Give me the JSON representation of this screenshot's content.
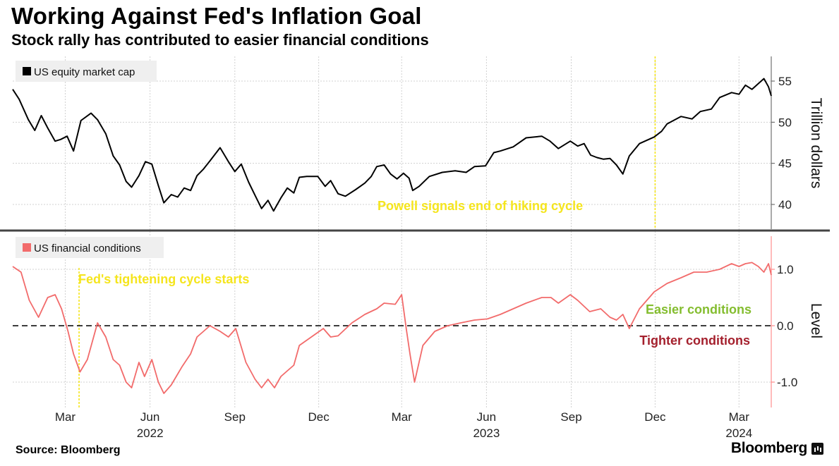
{
  "header": {
    "title": "Working Against Fed's Inflation Goal",
    "subtitle": "Stock rally has contributed to easier financial conditions"
  },
  "footer": {
    "source": "Source: Bloomberg",
    "brand": "Bloomberg"
  },
  "colors": {
    "equity_line": "#000000",
    "conditions_line": "#f26b6b",
    "annotation_yellow": "#f5e51e",
    "easier_green": "#84bd2f",
    "tighter_red": "#a4202d",
    "grid": "#d0d0d0"
  },
  "chart_data": [
    {
      "type": "line",
      "title": "US equity market cap",
      "legend": "US equity market cap",
      "ylabel": "Trillion dollars",
      "ylim": [
        37,
        58
      ],
      "yticks": [
        "40",
        "45",
        "50",
        "55"
      ],
      "x_start": "2022-01-03",
      "x_end": "2024-04-05",
      "x_months": [
        "Mar",
        "Jun",
        "Sep",
        "Dec",
        "Mar",
        "Jun",
        "Sep",
        "Dec",
        "Mar"
      ],
      "x_years": [
        "2022",
        "2023",
        "2024"
      ],
      "annotation": {
        "label": "Powell signals end of hiking cycle",
        "date": "2023-12-01"
      },
      "series": [
        {
          "name": "US equity market cap",
          "x": [
            "2022-01-03",
            "2022-01-10",
            "2022-01-20",
            "2022-01-27",
            "2022-02-03",
            "2022-02-10",
            "2022-02-18",
            "2022-02-24",
            "2022-03-03",
            "2022-03-10",
            "2022-03-18",
            "2022-03-29",
            "2022-04-05",
            "2022-04-14",
            "2022-04-22",
            "2022-04-29",
            "2022-05-06",
            "2022-05-12",
            "2022-05-20",
            "2022-05-27",
            "2022-06-03",
            "2022-06-10",
            "2022-06-16",
            "2022-06-24",
            "2022-07-01",
            "2022-07-08",
            "2022-07-15",
            "2022-07-22",
            "2022-07-29",
            "2022-08-05",
            "2022-08-16",
            "2022-08-25",
            "2022-09-01",
            "2022-09-08",
            "2022-09-16",
            "2022-09-23",
            "2022-09-30",
            "2022-10-07",
            "2022-10-13",
            "2022-10-21",
            "2022-10-28",
            "2022-11-04",
            "2022-11-10",
            "2022-11-18",
            "2022-11-30",
            "2022-12-08",
            "2022-12-14",
            "2022-12-22",
            "2022-12-30",
            "2023-01-10",
            "2023-01-20",
            "2023-01-27",
            "2023-02-02",
            "2023-02-10",
            "2023-02-17",
            "2023-02-24",
            "2023-03-03",
            "2023-03-09",
            "2023-03-13",
            "2023-03-20",
            "2023-03-31",
            "2023-04-14",
            "2023-04-28",
            "2023-05-10",
            "2023-05-19",
            "2023-05-31",
            "2023-06-09",
            "2023-06-16",
            "2023-06-30",
            "2023-07-14",
            "2023-07-31",
            "2023-08-09",
            "2023-08-18",
            "2023-08-31",
            "2023-09-08",
            "2023-09-15",
            "2023-09-22",
            "2023-09-29",
            "2023-10-06",
            "2023-10-13",
            "2023-10-20",
            "2023-10-27",
            "2023-11-03",
            "2023-11-14",
            "2023-11-30",
            "2023-12-08",
            "2023-12-14",
            "2023-12-29",
            "2024-01-10",
            "2024-01-19",
            "2024-01-31",
            "2024-02-09",
            "2024-02-22",
            "2024-03-01",
            "2024-03-08",
            "2024-03-15",
            "2024-03-28",
            "2024-04-02",
            "2024-04-05"
          ],
          "values": [
            54.0,
            52.8,
            50.3,
            49.0,
            50.8,
            49.3,
            47.7,
            47.9,
            48.3,
            46.5,
            50.2,
            51.1,
            50.3,
            48.6,
            45.9,
            44.8,
            42.8,
            42.1,
            43.5,
            45.2,
            44.9,
            42.3,
            40.2,
            41.2,
            40.9,
            42.0,
            41.7,
            43.5,
            44.3,
            45.3,
            46.9,
            45.2,
            44.0,
            44.9,
            42.7,
            41.1,
            39.5,
            40.5,
            39.2,
            40.8,
            42.0,
            41.4,
            43.3,
            43.4,
            43.4,
            42.2,
            42.9,
            41.3,
            41.0,
            41.8,
            42.6,
            43.4,
            44.6,
            44.8,
            43.7,
            43.1,
            43.8,
            43.2,
            41.7,
            42.2,
            43.4,
            43.9,
            44.1,
            43.9,
            44.6,
            44.7,
            46.3,
            46.5,
            47.0,
            48.1,
            48.3,
            47.7,
            46.8,
            47.7,
            47.1,
            47.4,
            46.0,
            45.7,
            45.5,
            45.6,
            44.8,
            43.7,
            45.9,
            47.4,
            48.2,
            48.9,
            49.8,
            50.7,
            50.4,
            51.3,
            51.6,
            53.0,
            53.6,
            53.4,
            54.5,
            54.0,
            55.3,
            54.3,
            53.2
          ]
        }
      ]
    },
    {
      "type": "line",
      "title": "US financial conditions",
      "legend": "US financial conditions",
      "ylabel": "Level",
      "ylim": [
        -1.45,
        1.65
      ],
      "yticks": [
        "-1.0",
        "0.0",
        "1.0"
      ],
      "reference_line": 0,
      "annotation": {
        "label": "Fed's tightening cycle starts",
        "date": "2022-03-16"
      },
      "labels": {
        "above_zero": "Easier conditions",
        "below_zero": "Tighter conditions"
      },
      "series": [
        {
          "name": "US financial conditions",
          "x": [
            "2022-01-03",
            "2022-01-12",
            "2022-01-21",
            "2022-01-31",
            "2022-02-10",
            "2022-02-18",
            "2022-02-25",
            "2022-03-04",
            "2022-03-10",
            "2022-03-17",
            "2022-03-25",
            "2022-04-05",
            "2022-04-14",
            "2022-04-22",
            "2022-04-29",
            "2022-05-06",
            "2022-05-12",
            "2022-05-20",
            "2022-05-26",
            "2022-06-03",
            "2022-06-10",
            "2022-06-16",
            "2022-06-24",
            "2022-07-06",
            "2022-07-15",
            "2022-07-22",
            "2022-07-29",
            "2022-08-05",
            "2022-08-16",
            "2022-08-25",
            "2022-09-02",
            "2022-09-13",
            "2022-09-23",
            "2022-09-30",
            "2022-10-07",
            "2022-10-14",
            "2022-10-21",
            "2022-10-28",
            "2022-11-04",
            "2022-11-10",
            "2022-11-23",
            "2022-12-06",
            "2022-12-14",
            "2022-12-22",
            "2023-01-06",
            "2023-01-20",
            "2023-02-02",
            "2023-02-10",
            "2023-02-22",
            "2023-03-01",
            "2023-03-06",
            "2023-03-10",
            "2023-03-15",
            "2023-03-24",
            "2023-04-06",
            "2023-04-20",
            "2023-05-04",
            "2023-05-19",
            "2023-06-02",
            "2023-06-16",
            "2023-06-30",
            "2023-07-14",
            "2023-07-31",
            "2023-08-10",
            "2023-08-18",
            "2023-08-31",
            "2023-09-08",
            "2023-09-21",
            "2023-10-03",
            "2023-10-13",
            "2023-10-20",
            "2023-10-27",
            "2023-11-03",
            "2023-11-14",
            "2023-11-30",
            "2023-12-14",
            "2023-12-29",
            "2024-01-12",
            "2024-01-26",
            "2024-02-09",
            "2024-02-22",
            "2024-03-01",
            "2024-03-08",
            "2024-03-15",
            "2024-03-22",
            "2024-03-28",
            "2024-04-02",
            "2024-04-05"
          ],
          "values": [
            1.05,
            0.95,
            0.45,
            0.15,
            0.5,
            0.55,
            0.3,
            -0.1,
            -0.5,
            -0.82,
            -0.6,
            0.05,
            -0.2,
            -0.6,
            -0.7,
            -1.0,
            -1.1,
            -0.65,
            -0.9,
            -0.6,
            -1.0,
            -1.2,
            -1.05,
            -0.72,
            -0.5,
            -0.2,
            -0.1,
            0.0,
            -0.1,
            -0.2,
            -0.05,
            -0.65,
            -0.95,
            -1.1,
            -0.95,
            -1.1,
            -0.9,
            -0.8,
            -0.7,
            -0.35,
            -0.2,
            -0.05,
            -0.2,
            -0.18,
            0.05,
            0.2,
            0.3,
            0.4,
            0.38,
            0.55,
            -0.05,
            -0.5,
            -1.0,
            -0.35,
            -0.1,
            0.0,
            0.05,
            0.1,
            0.12,
            0.2,
            0.3,
            0.4,
            0.5,
            0.5,
            0.4,
            0.55,
            0.45,
            0.25,
            0.3,
            0.15,
            0.1,
            0.2,
            -0.05,
            0.3,
            0.6,
            0.75,
            0.85,
            0.95,
            0.95,
            1.0,
            1.1,
            1.05,
            1.1,
            1.12,
            1.05,
            0.95,
            1.1,
            0.9
          ]
        }
      ]
    }
  ]
}
